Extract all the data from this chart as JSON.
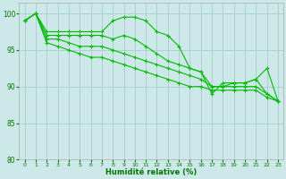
{
  "background_color": "#cce8e8",
  "grid_color": "#aacccc",
  "line_color": "#00bb00",
  "xlabel": "Humidité relative (%)",
  "ylim": [
    80,
    101.5
  ],
  "xlim": [
    -0.5,
    23.5
  ],
  "yticks": [
    80,
    85,
    90,
    95,
    100
  ],
  "xticks": [
    0,
    1,
    2,
    3,
    4,
    5,
    6,
    7,
    8,
    9,
    10,
    11,
    12,
    13,
    14,
    15,
    16,
    17,
    18,
    19,
    20,
    21,
    22,
    23
  ],
  "series": [
    [
      99,
      100,
      97.5,
      97.5,
      97.5,
      97.5,
      97.5,
      97.5,
      99,
      99.5,
      99.5,
      99,
      97.5,
      97,
      95.5,
      92.5,
      92,
      89,
      90.5,
      90.5,
      90.5,
      91,
      92.5,
      88
    ],
    [
      99,
      100,
      97,
      97,
      97,
      97,
      97,
      97,
      96.5,
      97,
      96.5,
      95.5,
      94.5,
      93.5,
      93,
      92.5,
      92,
      90,
      90,
      90.5,
      90.5,
      91,
      89,
      88
    ],
    [
      99,
      100,
      96.5,
      96.5,
      96,
      95.5,
      95.5,
      95.5,
      95,
      94.5,
      94,
      93.5,
      93,
      92.5,
      92,
      91.5,
      91,
      90,
      90,
      90,
      90,
      90,
      89,
      88
    ],
    [
      99,
      100,
      96,
      95.5,
      95,
      94.5,
      94,
      94,
      93.5,
      93,
      92.5,
      92,
      91.5,
      91,
      90.5,
      90,
      90,
      89.5,
      89.5,
      89.5,
      89.5,
      89.5,
      88.5,
      88
    ]
  ]
}
